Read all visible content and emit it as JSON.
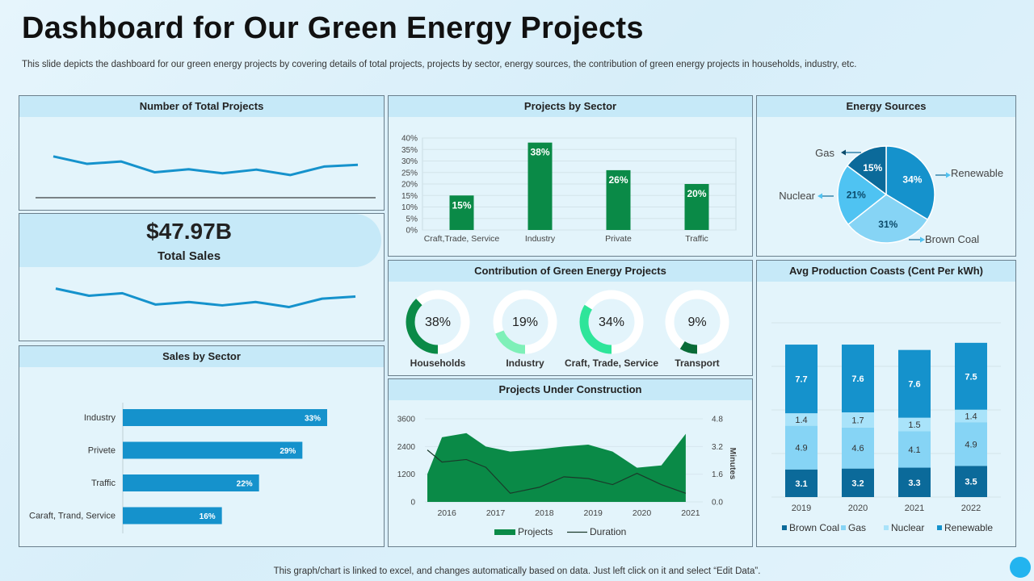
{
  "title": "Dashboard for Our Green Energy Projects",
  "subtitle": "This slide depicts the dashboard for our green energy projects by covering details of total projects, projects by sector, energy sources, the contribution of green energy projects in households, industry, etc.",
  "footer": "This graph/chart is linked to excel,  and changes automatically based on data. Just left click on it and select “Edit Data”.",
  "panels": {
    "total_projects": "Number of Total Projects",
    "projects_by_sector": "Projects by Sector",
    "energy_sources": "Energy Sources",
    "contribution": "Contribution of Green Energy Projects",
    "avg_cost": "Avg Production Coasts (Cent Per kWh)",
    "sales_by_sector": "Sales by Sector",
    "under_construction": "Projects Under Construction"
  },
  "kpi": {
    "value": "$47.97B",
    "label": "Total Sales"
  },
  "colors": {
    "dark_green": "#0a8a47",
    "blue": "#1592cc",
    "light_blue": "#86d4f5",
    "navy": "#0b6a9a",
    "mid_blue": "#4fc3f2"
  },
  "chart_data": [
    {
      "id": "total_projects",
      "type": "line",
      "title": "Number of Total Projects",
      "values": [
        60,
        38,
        45,
        13,
        22,
        10,
        21,
        5,
        30,
        35
      ]
    },
    {
      "id": "total_sales",
      "type": "line",
      "title": "Total Sales",
      "values": [
        68,
        51,
        57,
        30,
        36,
        28,
        36,
        24,
        44,
        49
      ]
    },
    {
      "id": "projects_by_sector",
      "type": "bar",
      "title": "Projects by Sector",
      "categories": [
        "Craft,Trade, Service",
        "Industry",
        "Private",
        "Traffic"
      ],
      "values": [
        15,
        38,
        26,
        20
      ],
      "labels": [
        "15%",
        "38%",
        "26%",
        "20%"
      ],
      "ylim": [
        0,
        40
      ],
      "yticks": [
        "0%",
        "5%",
        "10%",
        "15%",
        "20%",
        "25%",
        "30%",
        "35%",
        "40%"
      ]
    },
    {
      "id": "energy_sources",
      "type": "pie",
      "title": "Energy Sources",
      "slices": [
        {
          "name": "Renewable",
          "value": 34,
          "label": "34%",
          "color": "#1592cc"
        },
        {
          "name": "Brown Coal",
          "value": 31,
          "label": "31%",
          "color": "#86d4f5"
        },
        {
          "name": "Nuclear",
          "value": 21,
          "label": "21%",
          "color": "#4fc3f2"
        },
        {
          "name": "Gas",
          "value": 15,
          "label": "15%",
          "color": "#0b6a9a"
        }
      ]
    },
    {
      "id": "contribution",
      "type": "donut",
      "title": "Contribution of Green Energy Projects",
      "items": [
        {
          "name": "Households",
          "value": 38,
          "label": "38%",
          "color": "#0a8a47"
        },
        {
          "name": "Industry",
          "value": 19,
          "label": "19%",
          "color": "#7ef0b8"
        },
        {
          "name": "Craft, Trade, Service",
          "value": 34,
          "label": "34%",
          "color": "#2ee59a"
        },
        {
          "name": "Transport",
          "value": 9,
          "label": "9%",
          "color": "#0a6b37"
        }
      ]
    },
    {
      "id": "avg_cost",
      "type": "bar",
      "stacked": true,
      "title": "Avg Production Coasts (Cent Per kWh)",
      "categories": [
        "2019",
        "2020",
        "2021",
        "2022"
      ],
      "series": [
        {
          "name": "Brown Coal",
          "values": [
            3.1,
            3.2,
            3.3,
            3.5
          ],
          "color": "#0b6a9a"
        },
        {
          "name": "Gas",
          "values": [
            4.9,
            4.6,
            4.1,
            4.9
          ],
          "color": "#86d4f5"
        },
        {
          "name": "Nuclear",
          "values": [
            1.4,
            1.7,
            1.5,
            1.4
          ],
          "color": "#a9e3fa"
        },
        {
          "name": "Renewable",
          "values": [
            7.7,
            7.6,
            7.6,
            7.5
          ],
          "color": "#1592cc"
        }
      ]
    },
    {
      "id": "sales_by_sector",
      "type": "bar",
      "orientation": "horizontal",
      "title": "Sales by Sector",
      "categories": [
        "Industry",
        "Privete",
        "Traffic",
        "Caraft, Trand, Service"
      ],
      "values": [
        33,
        29,
        22,
        16
      ],
      "labels": [
        "33%",
        "29%",
        "22%",
        "16%"
      ]
    },
    {
      "id": "under_construction",
      "type": "area",
      "title": "Projects Under Construction",
      "x_ticks": [
        "2016",
        "2017",
        "2018",
        "2019",
        "2020",
        "2021"
      ],
      "y_left_ticks": [
        "0",
        "1200",
        "2400",
        "3600"
      ],
      "y_right_ticks": [
        "0.0",
        "1.6",
        "3.2",
        "4.8"
      ],
      "y_right_label": "Minutes",
      "ylim_left": [
        0,
        3600
      ],
      "ylim_right": [
        0,
        4.8
      ],
      "series": [
        {
          "name": "Projects",
          "type": "area",
          "color": "#0a8a47",
          "x": [
            2015.6,
            2015.9,
            2016.4,
            2016.8,
            2017.3,
            2017.9,
            2018.4,
            2018.9,
            2019.4,
            2019.9,
            2020.4,
            2020.9
          ],
          "values": [
            1200,
            2800,
            2980,
            2400,
            2180,
            2280,
            2400,
            2480,
            2180,
            1480,
            1580,
            2950
          ]
        },
        {
          "name": "Duration",
          "type": "line",
          "color": "#1a3a2a",
          "x": [
            2015.6,
            2015.9,
            2016.4,
            2016.8,
            2017.3,
            2017.9,
            2018.4,
            2018.9,
            2019.4,
            2019.9,
            2020.4,
            2020.9
          ],
          "values": [
            3.0,
            2.3,
            2.45,
            2.0,
            0.5,
            0.85,
            1.45,
            1.35,
            1.0,
            1.65,
            1.0,
            0.5
          ]
        }
      ]
    }
  ]
}
